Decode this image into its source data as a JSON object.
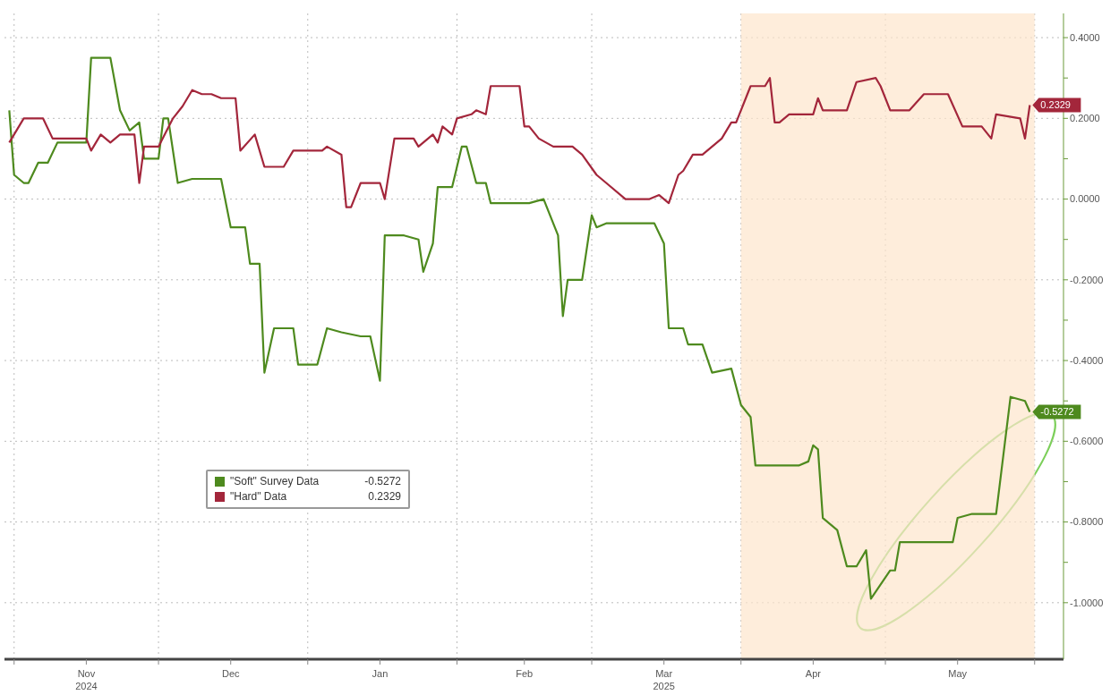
{
  "chart_data": {
    "type": "line",
    "legend": "bottom left",
    "grid": true,
    "marker": "none",
    "line_style": "solid",
    "xlim": [
      "2024-10-30",
      "2025-06-07"
    ],
    "xticks": [
      {
        "value": "2024-11-01",
        "label": null
      },
      {
        "value": "2024-11-16",
        "label": "Nov\n2024"
      },
      {
        "value": "2024-12-01",
        "label": null
      },
      {
        "value": "2024-12-16",
        "label": "Dec"
      },
      {
        "value": "2025-01-01",
        "label": null
      },
      {
        "value": "2025-01-16",
        "label": "Jan"
      },
      {
        "value": "2025-02-01",
        "label": null
      },
      {
        "value": "2025-02-15",
        "label": "Feb"
      },
      {
        "value": "2025-03-01",
        "label": null
      },
      {
        "value": "2025-03-16",
        "label": "Mar\n2025"
      },
      {
        "value": "2025-04-01",
        "label": null
      },
      {
        "value": "2025-04-16",
        "label": "Apr"
      },
      {
        "value": "2025-05-01",
        "label": null
      },
      {
        "value": "2025-05-16",
        "label": "May"
      },
      {
        "value": "2025-06-01",
        "label": null
      }
    ],
    "ylim": [
      -1.14,
      0.46
    ],
    "yticks": [
      {
        "value": 0.4,
        "label": "0.4000"
      },
      {
        "value": 0.3,
        "label": null
      },
      {
        "value": 0.2,
        "label": "0.2000"
      },
      {
        "value": 0.1,
        "label": null
      },
      {
        "value": 0,
        "label": "0.0000"
      },
      {
        "value": -0.1,
        "label": null
      },
      {
        "value": -0.2,
        "label": "-0.2000"
      },
      {
        "value": -0.3,
        "label": null
      },
      {
        "value": -0.4,
        "label": "-0.4000"
      },
      {
        "value": -0.5,
        "label": null
      },
      {
        "value": -0.6,
        "label": "-0.6000"
      },
      {
        "value": -0.7,
        "label": null
      },
      {
        "value": -0.8,
        "label": "-0.8000"
      },
      {
        "value": -0.9,
        "label": null
      },
      {
        "value": -1.0,
        "label": "-1.0000"
      }
    ],
    "bands": [
      {
        "axis": "x",
        "from": "2025-04-01",
        "to": "2025-06-01",
        "color": "#fde6cc"
      }
    ],
    "series": [
      {
        "name": "\"Soft\" Survey Data",
        "color": "#4e8a1e",
        "x": [
          "2024-10-31",
          "2024-11-01",
          "2024-11-03",
          "2024-11-04",
          "2024-11-06",
          "2024-11-08",
          "2024-11-10",
          "2024-11-16",
          "2024-11-17",
          "2024-11-21",
          "2024-11-23",
          "2024-11-25",
          "2024-11-27",
          "2024-11-28",
          "2024-12-01",
          "2024-12-02",
          "2024-12-03",
          "2024-12-05",
          "2024-12-08",
          "2024-12-14",
          "2024-12-16",
          "2024-12-19",
          "2024-12-20",
          "2024-12-22",
          "2024-12-23",
          "2024-12-25",
          "2024-12-29",
          "2024-12-30",
          "2025-01-03",
          "2025-01-05",
          "2025-01-08",
          "2025-01-12",
          "2025-01-14",
          "2025-01-16",
          "2025-01-17",
          "2025-01-21",
          "2025-01-24",
          "2025-01-25",
          "2025-01-27",
          "2025-01-28",
          "2025-01-31",
          "2025-02-02",
          "2025-02-03",
          "2025-02-05",
          "2025-02-07",
          "2025-02-08",
          "2025-02-16",
          "2025-02-19",
          "2025-02-22",
          "2025-02-23",
          "2025-02-24",
          "2025-02-27",
          "2025-03-01",
          "2025-03-02",
          "2025-03-04",
          "2025-03-14",
          "2025-03-16",
          "2025-03-17",
          "2025-03-20",
          "2025-03-21",
          "2025-03-24",
          "2025-03-26",
          "2025-03-30",
          "2025-04-01",
          "2025-04-03",
          "2025-04-04",
          "2025-04-13",
          "2025-04-15",
          "2025-04-16",
          "2025-04-17",
          "2025-04-18",
          "2025-04-21",
          "2025-04-23",
          "2025-04-25",
          "2025-04-27",
          "2025-04-28",
          "2025-05-02",
          "2025-05-03",
          "2025-05-04",
          "2025-05-15",
          "2025-05-16",
          "2025-05-19",
          "2025-05-24",
          "2025-05-27",
          "2025-05-30",
          "2025-05-31"
        ],
        "values": [
          0.22,
          0.06,
          0.04,
          0.04,
          0.09,
          0.09,
          0.14,
          0.14,
          0.35,
          0.35,
          0.22,
          0.17,
          0.19,
          0.1,
          0.1,
          0.2,
          0.2,
          0.04,
          0.05,
          0.05,
          -0.07,
          -0.07,
          -0.16,
          -0.16,
          -0.43,
          -0.32,
          -0.32,
          -0.41,
          -0.41,
          -0.32,
          -0.33,
          -0.34,
          -0.34,
          -0.45,
          -0.09,
          -0.09,
          -0.1,
          -0.18,
          -0.11,
          0.03,
          0.03,
          0.13,
          0.13,
          0.04,
          0.04,
          -0.01,
          -0.01,
          0,
          -0.09,
          -0.29,
          -0.2,
          -0.2,
          -0.04,
          -0.07,
          -0.06,
          -0.06,
          -0.11,
          -0.32,
          -0.32,
          -0.36,
          -0.36,
          -0.43,
          -0.42,
          -0.51,
          -0.54,
          -0.66,
          -0.66,
          -0.65,
          -0.61,
          -0.62,
          -0.79,
          -0.82,
          -0.91,
          -0.91,
          -0.87,
          -0.99,
          -0.92,
          -0.92,
          -0.85,
          -0.85,
          -0.79,
          -0.78,
          -0.78,
          -0.49,
          -0.5,
          -0.5272
        ],
        "value_labels": [
          null,
          null,
          null,
          null,
          null,
          null,
          null,
          null,
          null,
          null,
          null,
          null,
          null,
          null,
          null,
          null,
          null,
          null,
          null,
          null,
          null,
          null,
          null,
          null,
          null,
          null,
          null,
          null,
          null,
          null,
          null,
          null,
          null,
          null,
          null,
          null,
          null,
          null,
          null,
          null,
          null,
          null,
          null,
          null,
          null,
          null,
          null,
          null,
          null,
          null,
          null,
          null,
          null,
          null,
          null,
          null,
          null,
          null,
          null,
          null,
          null,
          null,
          null,
          null,
          null,
          null,
          null,
          null,
          null,
          null,
          null,
          null,
          null,
          null,
          null,
          null,
          null,
          null,
          null,
          null,
          null,
          null,
          null,
          null,
          null,
          "-0.5272"
        ]
      },
      {
        "name": "\"Hard\" Data",
        "color": "#a3263b",
        "x": [
          "2024-10-31",
          "2024-11-03",
          "2024-11-07",
          "2024-11-09",
          "2024-11-16",
          "2024-11-17",
          "2024-11-19",
          "2024-11-21",
          "2024-11-23",
          "2024-11-26",
          "2024-11-27",
          "2024-11-28",
          "2024-12-01",
          "2024-12-04",
          "2024-12-06",
          "2024-12-08",
          "2024-12-10",
          "2024-12-12",
          "2024-12-14",
          "2024-12-17",
          "2024-12-18",
          "2024-12-21",
          "2024-12-23",
          "2024-12-27",
          "2024-12-29",
          "2025-01-04",
          "2025-01-05",
          "2025-01-08",
          "2025-01-09",
          "2025-01-10",
          "2025-01-12",
          "2025-01-16",
          "2025-01-17",
          "2025-01-19",
          "2025-01-23",
          "2025-01-24",
          "2025-01-27",
          "2025-01-28",
          "2025-01-29",
          "2025-01-31",
          "2025-02-01",
          "2025-02-04",
          "2025-02-05",
          "2025-02-07",
          "2025-02-08",
          "2025-02-12",
          "2025-02-14",
          "2025-02-15",
          "2025-02-16",
          "2025-02-18",
          "2025-02-21",
          "2025-02-25",
          "2025-02-27",
          "2025-03-02",
          "2025-03-04",
          "2025-03-08",
          "2025-03-13",
          "2025-03-15",
          "2025-03-17",
          "2025-03-19",
          "2025-03-20",
          "2025-03-22",
          "2025-03-24",
          "2025-03-28",
          "2025-03-30",
          "2025-03-31",
          "2025-04-03",
          "2025-04-06",
          "2025-04-07",
          "2025-04-08",
          "2025-04-09",
          "2025-04-11",
          "2025-04-16",
          "2025-04-17",
          "2025-04-18",
          "2025-04-23",
          "2025-04-25",
          "2025-04-29",
          "2025-04-30",
          "2025-05-02",
          "2025-05-06",
          "2025-05-09",
          "2025-05-14",
          "2025-05-17",
          "2025-05-21",
          "2025-05-23",
          "2025-05-24",
          "2025-05-29",
          "2025-05-30",
          "2025-05-31"
        ],
        "values": [
          0.14,
          0.2,
          0.2,
          0.15,
          0.15,
          0.12,
          0.16,
          0.14,
          0.16,
          0.16,
          0.04,
          0.13,
          0.13,
          0.2,
          0.23,
          0.27,
          0.26,
          0.26,
          0.25,
          0.25,
          0.12,
          0.16,
          0.08,
          0.08,
          0.12,
          0.12,
          0.13,
          0.11,
          -0.02,
          -0.02,
          0.04,
          0.04,
          0,
          0.15,
          0.15,
          0.13,
          0.16,
          0.14,
          0.18,
          0.16,
          0.2,
          0.21,
          0.22,
          0.21,
          0.28,
          0.28,
          0.28,
          0.18,
          0.18,
          0.15,
          0.13,
          0.13,
          0.11,
          0.06,
          0.04,
          0,
          0,
          0.01,
          -0.01,
          0.06,
          0.07,
          0.11,
          0.11,
          0.15,
          0.19,
          0.19,
          0.28,
          0.28,
          0.3,
          0.19,
          0.19,
          0.21,
          0.21,
          0.25,
          0.22,
          0.22,
          0.29,
          0.3,
          0.28,
          0.22,
          0.22,
          0.26,
          0.26,
          0.18,
          0.18,
          0.15,
          0.21,
          0.2,
          0.15,
          0.2329
        ],
        "value_labels": [
          null,
          null,
          null,
          null,
          null,
          null,
          null,
          null,
          null,
          null,
          null,
          null,
          null,
          null,
          null,
          null,
          null,
          null,
          null,
          null,
          null,
          null,
          null,
          null,
          null,
          null,
          null,
          null,
          null,
          null,
          null,
          null,
          null,
          null,
          null,
          null,
          null,
          null,
          null,
          null,
          null,
          null,
          null,
          null,
          null,
          null,
          null,
          null,
          null,
          null,
          null,
          null,
          null,
          null,
          null,
          null,
          null,
          null,
          null,
          null,
          null,
          null,
          null,
          null,
          null,
          null,
          null,
          null,
          null,
          null,
          null,
          null,
          null,
          null,
          null,
          null,
          null,
          null,
          null,
          null,
          null,
          null,
          null,
          null,
          null,
          null,
          null,
          null,
          null,
          "0.2329"
        ]
      }
    ]
  }
}
